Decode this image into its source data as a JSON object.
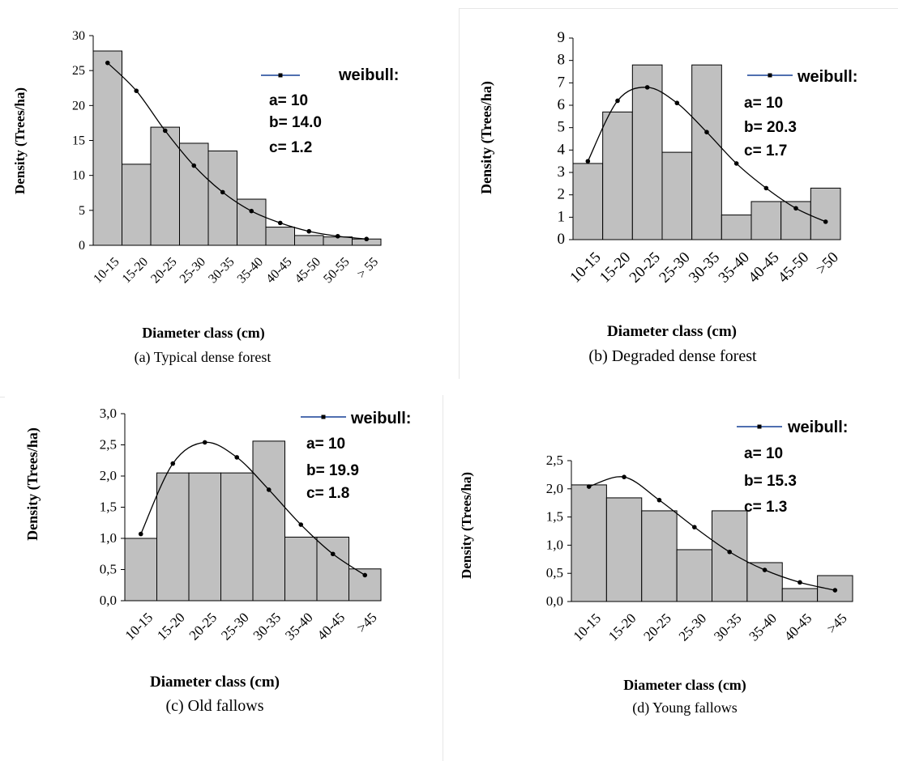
{
  "chart_data": [
    {
      "type": "bar",
      "panel": "a",
      "caption": "(a) Typical dense forest",
      "xlabel": "Diameter class (cm)",
      "ylabel": "Density (Trees/ha)",
      "categories": [
        "10-15",
        "15-20",
        "20-25",
        "25-30",
        "30-35",
        "35-40",
        "40-45",
        "45-50",
        "50-55",
        "> 55"
      ],
      "values": [
        27.8,
        11.6,
        16.9,
        14.6,
        13.5,
        6.6,
        2.6,
        1.4,
        1.2,
        0.9
      ],
      "fit": {
        "name": "weibull:",
        "values": [
          26.1,
          22.1,
          16.4,
          11.4,
          7.6,
          4.9,
          3.2,
          2.0,
          1.3,
          0.9
        ]
      },
      "params": [
        "a= 10",
        "b= 14.0",
        "c= 1.2"
      ],
      "ylim": [
        0,
        30
      ],
      "yticks": [
        "0",
        "5",
        "10",
        "15",
        "20",
        "25",
        "30"
      ],
      "legend_position": "top-right"
    },
    {
      "type": "bar",
      "panel": "b",
      "caption": "(b) Degraded dense forest",
      "xlabel": "Diameter class (cm)",
      "ylabel": "Density  (Trees/ha)",
      "categories": [
        "10-15",
        "15-20",
        "20-25",
        "25-30",
        "30-35",
        "35-40",
        "40-45",
        "45-50",
        ">50"
      ],
      "values": [
        3.4,
        5.7,
        7.8,
        3.9,
        7.8,
        1.1,
        1.7,
        1.7,
        2.3
      ],
      "fit": {
        "name": "weibull:",
        "values": [
          3.5,
          6.2,
          6.8,
          6.1,
          4.8,
          3.4,
          2.3,
          1.4,
          0.8
        ]
      },
      "params": [
        "a= 10",
        "b= 20.3",
        "c= 1.7"
      ],
      "ylim": [
        0,
        9
      ],
      "yticks": [
        "0",
        "1",
        "2",
        "3",
        "4",
        "5",
        "6",
        "7",
        "8",
        "9"
      ],
      "legend_position": "top-right"
    },
    {
      "type": "bar",
      "panel": "c",
      "caption": "(c) Old fallows",
      "xlabel": "Diameter class (cm)",
      "ylabel": "Density (Trees/ha)",
      "categories": [
        "10-15",
        "15-20",
        "20-25",
        "25-30",
        "30-35",
        "35-40",
        "40-45",
        ">45"
      ],
      "values": [
        1.0,
        2.05,
        2.05,
        2.05,
        2.56,
        1.02,
        1.02,
        0.51
      ],
      "fit": {
        "name": "weibull:",
        "values": [
          1.07,
          2.2,
          2.54,
          2.3,
          1.78,
          1.22,
          0.75,
          0.41
        ]
      },
      "params": [
        "a= 10",
        "b= 19.9",
        "c= 1.8"
      ],
      "ylim": [
        0,
        3
      ],
      "yticks": [
        "0,0",
        "0,5",
        "1,0",
        "1,5",
        "2,0",
        "2,5",
        "3,0"
      ],
      "legend_position": "top-right"
    },
    {
      "type": "bar",
      "panel": "d",
      "caption": "(d) Young fallows",
      "xlabel": "Diameter class (cm)",
      "ylabel": "Density (Trees/ha)",
      "categories": [
        "10-15",
        "15-20",
        "20-25",
        "25-30",
        "30-35",
        "35-40",
        "40-45",
        ">45"
      ],
      "values": [
        2.07,
        1.84,
        1.61,
        0.92,
        1.61,
        0.69,
        0.23,
        0.46
      ],
      "fit": {
        "name": "weibull:",
        "values": [
          2.04,
          2.21,
          1.8,
          1.32,
          0.88,
          0.56,
          0.34,
          0.2
        ]
      },
      "params": [
        "a= 10",
        "b= 15.3",
        "c= 1.3"
      ],
      "ylim": [
        0,
        2.5
      ],
      "yticks": [
        "0,0",
        "0,5",
        "1,0",
        "1,5",
        "2,0",
        "2,5"
      ],
      "legend_position": "top-right"
    }
  ]
}
